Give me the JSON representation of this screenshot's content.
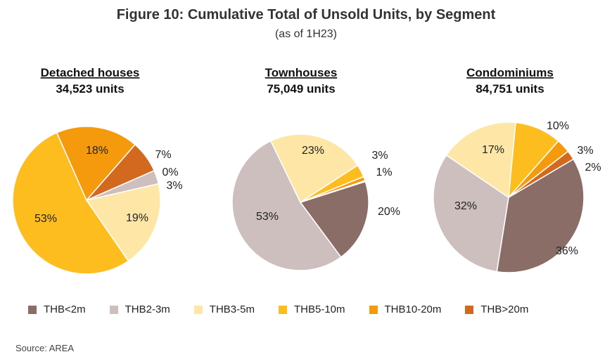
{
  "title": "Figure 10: Cumulative Total of Unsold Units, by Segment",
  "subtitle": "(as of 1H23)",
  "source": "Source: AREA",
  "chart_data": [
    {
      "type": "pie",
      "title": "Detached houses",
      "subtitle": "34,523 units",
      "slices": [
        {
          "label": "THB<2m",
          "value": 0,
          "display": "0%"
        },
        {
          "label": "THB2-3m",
          "value": 3,
          "display": "3%"
        },
        {
          "label": "THB3-5m",
          "value": 19,
          "display": "19%"
        },
        {
          "label": "THB5-10m",
          "value": 53,
          "display": "53%"
        },
        {
          "label": "THB10-20m",
          "value": 18,
          "display": "18%"
        },
        {
          "label": "THB>20m",
          "value": 7,
          "display": "7%"
        }
      ]
    },
    {
      "type": "pie",
      "title": "Townhouses",
      "subtitle": "75,049 units",
      "slices": [
        {
          "label": "THB<2m",
          "value": 20,
          "display": "20%"
        },
        {
          "label": "THB2-3m",
          "value": 53,
          "display": "53%"
        },
        {
          "label": "THB3-5m",
          "value": 23,
          "display": "23%"
        },
        {
          "label": "THB5-10m",
          "value": 3,
          "display": "3%"
        },
        {
          "label": "THB10-20m",
          "value": 1,
          "display": "1%"
        },
        {
          "label": "THB>20m",
          "value": 0,
          "display": ""
        }
      ]
    },
    {
      "type": "pie",
      "title": "Condominiums",
      "subtitle": "84,751 units",
      "slices": [
        {
          "label": "THB<2m",
          "value": 36,
          "display": "36%"
        },
        {
          "label": "THB2-3m",
          "value": 32,
          "display": "32%"
        },
        {
          "label": "THB3-5m",
          "value": 17,
          "display": "17%"
        },
        {
          "label": "THB5-10m",
          "value": 10,
          "display": "10%"
        },
        {
          "label": "THB10-20m",
          "value": 3,
          "display": "3%"
        },
        {
          "label": "THB>20m",
          "value": 2,
          "display": "2%"
        }
      ]
    }
  ],
  "legend": [
    {
      "label": "THB<2m",
      "color": "#8a6d66"
    },
    {
      "label": "THB2-3m",
      "color": "#cdbfbd"
    },
    {
      "label": "THB3-5m",
      "color": "#fde6a6"
    },
    {
      "label": "THB5-10m",
      "color": "#fdbd1f"
    },
    {
      "label": "THB10-20m",
      "color": "#f59a0c"
    },
    {
      "label": "THB>20m",
      "color": "#d2691e"
    }
  ]
}
